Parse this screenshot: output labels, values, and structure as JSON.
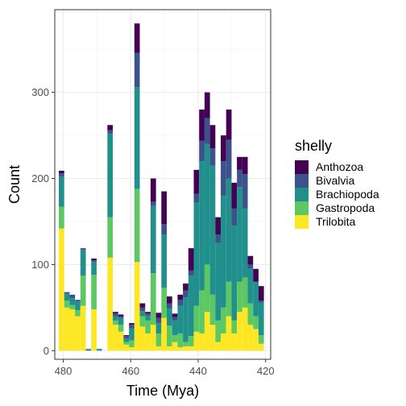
{
  "chart_data": {
    "type": "bar",
    "stacked": true,
    "title": "",
    "xlabel": "Time (Mya)",
    "ylabel": "Count",
    "x_reversed": true,
    "xlim": [
      418.5,
      482.5
    ],
    "ylim": [
      -10,
      396
    ],
    "x_ticks": [
      480,
      460,
      440,
      420
    ],
    "y_ticks": [
      0,
      100,
      200,
      300
    ],
    "grid": true,
    "legend": {
      "title": "shelly",
      "position": "right"
    },
    "bar_width": 1.6,
    "series": [
      {
        "name": "Anthozoa",
        "color": "#440154"
      },
      {
        "name": "Bivalvia",
        "color": "#3B528B"
      },
      {
        "name": "Brachiopoda",
        "color": "#21908C"
      },
      {
        "name": "Gastropoda",
        "color": "#5DC863"
      },
      {
        "name": "Trilobita",
        "color": "#FDE725"
      }
    ],
    "bars": [
      {
        "x": 480.5,
        "values": {
          "Trilobita": 142,
          "Gastropoda": 25,
          "Brachiopoda": 35,
          "Bivalvia": 4,
          "Anthozoa": 3
        }
      },
      {
        "x": 478.9,
        "values": {
          "Trilobita": 50,
          "Gastropoda": 8,
          "Brachiopoda": 8,
          "Bivalvia": 2,
          "Anthozoa": 0
        }
      },
      {
        "x": 477.3,
        "values": {
          "Trilobita": 48,
          "Gastropoda": 5,
          "Brachiopoda": 8,
          "Bivalvia": 4,
          "Anthozoa": 0
        }
      },
      {
        "x": 475.7,
        "values": {
          "Trilobita": 40,
          "Gastropoda": 7,
          "Brachiopoda": 10,
          "Bivalvia": 2,
          "Anthozoa": 0
        }
      },
      {
        "x": 474.1,
        "values": {
          "Trilobita": 52,
          "Gastropoda": 35,
          "Brachiopoda": 30,
          "Bivalvia": 2,
          "Anthozoa": 0
        }
      },
      {
        "x": 472.5,
        "values": {
          "Trilobita": 0,
          "Gastropoda": 0,
          "Brachiopoda": 2,
          "Bivalvia": 0,
          "Anthozoa": 0
        }
      },
      {
        "x": 470.9,
        "values": {
          "Trilobita": 48,
          "Gastropoda": 40,
          "Brachiopoda": 15,
          "Bivalvia": 2,
          "Anthozoa": 2
        }
      },
      {
        "x": 469.3,
        "values": {
          "Trilobita": 0,
          "Gastropoda": 0,
          "Brachiopoda": 2,
          "Bivalvia": 0,
          "Anthozoa": 0
        }
      },
      {
        "x": 467.7,
        "values": {
          "Trilobita": 0,
          "Gastropoda": 0,
          "Brachiopoda": 0,
          "Bivalvia": 0,
          "Anthozoa": 0
        }
      },
      {
        "x": 466.1,
        "values": {
          "Trilobita": 108,
          "Gastropoda": 47,
          "Brachiopoda": 97,
          "Bivalvia": 4,
          "Anthozoa": 6
        }
      },
      {
        "x": 464.5,
        "values": {
          "Trilobita": 30,
          "Gastropoda": 5,
          "Brachiopoda": 5,
          "Bivalvia": 3,
          "Anthozoa": 2
        }
      },
      {
        "x": 462.9,
        "values": {
          "Trilobita": 22,
          "Gastropoda": 8,
          "Brachiopoda": 8,
          "Bivalvia": 2,
          "Anthozoa": 2
        }
      },
      {
        "x": 461.3,
        "values": {
          "Trilobita": 7,
          "Gastropoda": 3,
          "Brachiopoda": 4,
          "Bivalvia": 3,
          "Anthozoa": 1
        }
      },
      {
        "x": 459.7,
        "values": {
          "Trilobita": 4,
          "Gastropoda": 8,
          "Brachiopoda": 14,
          "Bivalvia": 4,
          "Anthozoa": 2
        }
      },
      {
        "x": 458.1,
        "values": {
          "Trilobita": 103,
          "Gastropoda": 85,
          "Brachiopoda": 118,
          "Bivalvia": 40,
          "Anthozoa": 34
        }
      },
      {
        "x": 456.5,
        "values": {
          "Trilobita": 28,
          "Gastropoda": 12,
          "Brachiopoda": 6,
          "Bivalvia": 4,
          "Anthozoa": 5
        }
      },
      {
        "x": 454.9,
        "values": {
          "Trilobita": 20,
          "Gastropoda": 15,
          "Brachiopoda": 6,
          "Bivalvia": 2,
          "Anthozoa": 2
        }
      },
      {
        "x": 453.3,
        "values": {
          "Trilobita": 30,
          "Gastropoda": 60,
          "Brachiopoda": 78,
          "Bivalvia": 5,
          "Anthozoa": 27
        }
      },
      {
        "x": 451.7,
        "values": {
          "Trilobita": 5,
          "Gastropoda": 15,
          "Brachiopoda": 12,
          "Bivalvia": 6,
          "Anthozoa": 6
        }
      },
      {
        "x": 450.1,
        "values": {
          "Trilobita": 38,
          "Gastropoda": 35,
          "Brachiopoda": 62,
          "Bivalvia": 12,
          "Anthozoa": 38
        }
      },
      {
        "x": 448.5,
        "values": {
          "Trilobita": 5,
          "Gastropoda": 24,
          "Brachiopoda": 20,
          "Bivalvia": 6,
          "Anthozoa": 8
        }
      },
      {
        "x": 446.9,
        "values": {
          "Trilobita": 10,
          "Gastropoda": 8,
          "Brachiopoda": 17,
          "Bivalvia": 4,
          "Anthozoa": 4
        }
      },
      {
        "x": 445.3,
        "values": {
          "Trilobita": 4,
          "Gastropoda": 16,
          "Brachiopoda": 32,
          "Bivalvia": 7,
          "Anthozoa": 6
        }
      },
      {
        "x": 443.7,
        "values": {
          "Trilobita": 5,
          "Gastropoda": 5,
          "Brachiopoda": 52,
          "Bivalvia": 8,
          "Anthozoa": 8
        }
      },
      {
        "x": 442.1,
        "values": {
          "Trilobita": 5,
          "Gastropoda": 12,
          "Brachiopoda": 70,
          "Bivalvia": 6,
          "Anthozoa": 26
        }
      },
      {
        "x": 440.5,
        "values": {
          "Trilobita": 22,
          "Gastropoda": 30,
          "Brachiopoda": 120,
          "Bivalvia": 10,
          "Anthozoa": 28
        }
      },
      {
        "x": 438.9,
        "values": {
          "Trilobita": 20,
          "Gastropoda": 50,
          "Brachiopoda": 150,
          "Bivalvia": 24,
          "Anthozoa": 36
        }
      },
      {
        "x": 437.3,
        "values": {
          "Trilobita": 45,
          "Gastropoda": 55,
          "Brachiopoda": 140,
          "Bivalvia": 30,
          "Anthozoa": 30
        }
      },
      {
        "x": 435.7,
        "values": {
          "Trilobita": 30,
          "Gastropoda": 35,
          "Brachiopoda": 150,
          "Bivalvia": 20,
          "Anthozoa": 27
        }
      },
      {
        "x": 434.1,
        "values": {
          "Trilobita": 10,
          "Gastropoda": 25,
          "Brachiopoda": 90,
          "Bivalvia": 10,
          "Anthozoa": 20
        }
      },
      {
        "x": 432.5,
        "values": {
          "Trilobita": 20,
          "Gastropoda": 30,
          "Brachiopoda": 130,
          "Bivalvia": 40,
          "Anthozoa": 30
        }
      },
      {
        "x": 430.9,
        "values": {
          "Trilobita": 40,
          "Gastropoda": 40,
          "Brachiopoda": 120,
          "Bivalvia": 45,
          "Anthozoa": 35
        }
      },
      {
        "x": 429.3,
        "values": {
          "Trilobita": 20,
          "Gastropoda": 15,
          "Brachiopoda": 110,
          "Bivalvia": 20,
          "Anthozoa": 30
        }
      },
      {
        "x": 427.7,
        "values": {
          "Trilobita": 45,
          "Gastropoda": 35,
          "Brachiopoda": 110,
          "Bivalvia": 20,
          "Anthozoa": 15
        }
      },
      {
        "x": 426.1,
        "values": {
          "Trilobita": 50,
          "Gastropoda": 35,
          "Brachiopoda": 80,
          "Bivalvia": 40,
          "Anthozoa": 20
        }
      },
      {
        "x": 424.5,
        "values": {
          "Trilobita": 30,
          "Gastropoda": 25,
          "Brachiopoda": 40,
          "Bivalvia": 5,
          "Anthozoa": 10
        }
      },
      {
        "x": 422.9,
        "values": {
          "Trilobita": 25,
          "Gastropoda": 15,
          "Brachiopoda": 40,
          "Bivalvia": 0,
          "Anthozoa": 15
        }
      },
      {
        "x": 421.3,
        "values": {
          "Trilobita": 8,
          "Gastropoda": 10,
          "Brachiopoda": 38,
          "Bivalvia": 2,
          "Anthozoa": 17
        }
      }
    ]
  }
}
